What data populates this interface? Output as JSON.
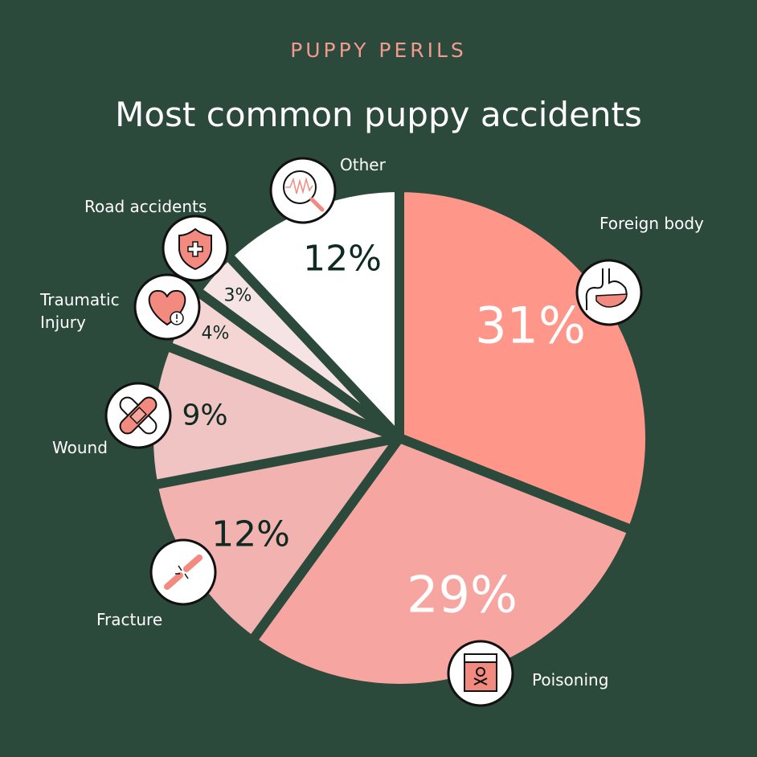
{
  "kicker": "PUPPY PERILS",
  "title": "Most common puppy accidents",
  "chart_data": {
    "type": "pie",
    "title": "Most common puppy accidents",
    "start": "top",
    "direction": "clockwise",
    "categories": [
      "Foreign body",
      "Poisoning",
      "Fracture",
      "Wound",
      "Traumatic Injury",
      "Road accidents",
      "Other"
    ],
    "values": [
      31,
      29,
      12,
      9,
      4,
      3,
      12
    ],
    "value_labels": [
      "31%",
      "29%",
      "12%",
      "9%",
      "4%",
      "3%",
      "12%"
    ],
    "colors": [
      "#ff968a",
      "#f7a5a0",
      "#f2b3b0",
      "#f0c4c2",
      "#f5d5d3",
      "#f5e4e3",
      "#ffffff"
    ],
    "label_colors": [
      "#ffffff",
      "#ffffff",
      "#0f2a22",
      "#0f2a22",
      "#0f2a22",
      "#0f2a22",
      "#0f2a22"
    ],
    "icons": [
      "stomach-icon",
      "poison-bottle-icon",
      "broken-bone-icon",
      "bandage-icon",
      "heart-alert-icon",
      "shield-cross-icon",
      "magnifier-chart-icon"
    ]
  },
  "colors": {
    "background": "#2c4a3c",
    "accent": "#f29a8e"
  }
}
